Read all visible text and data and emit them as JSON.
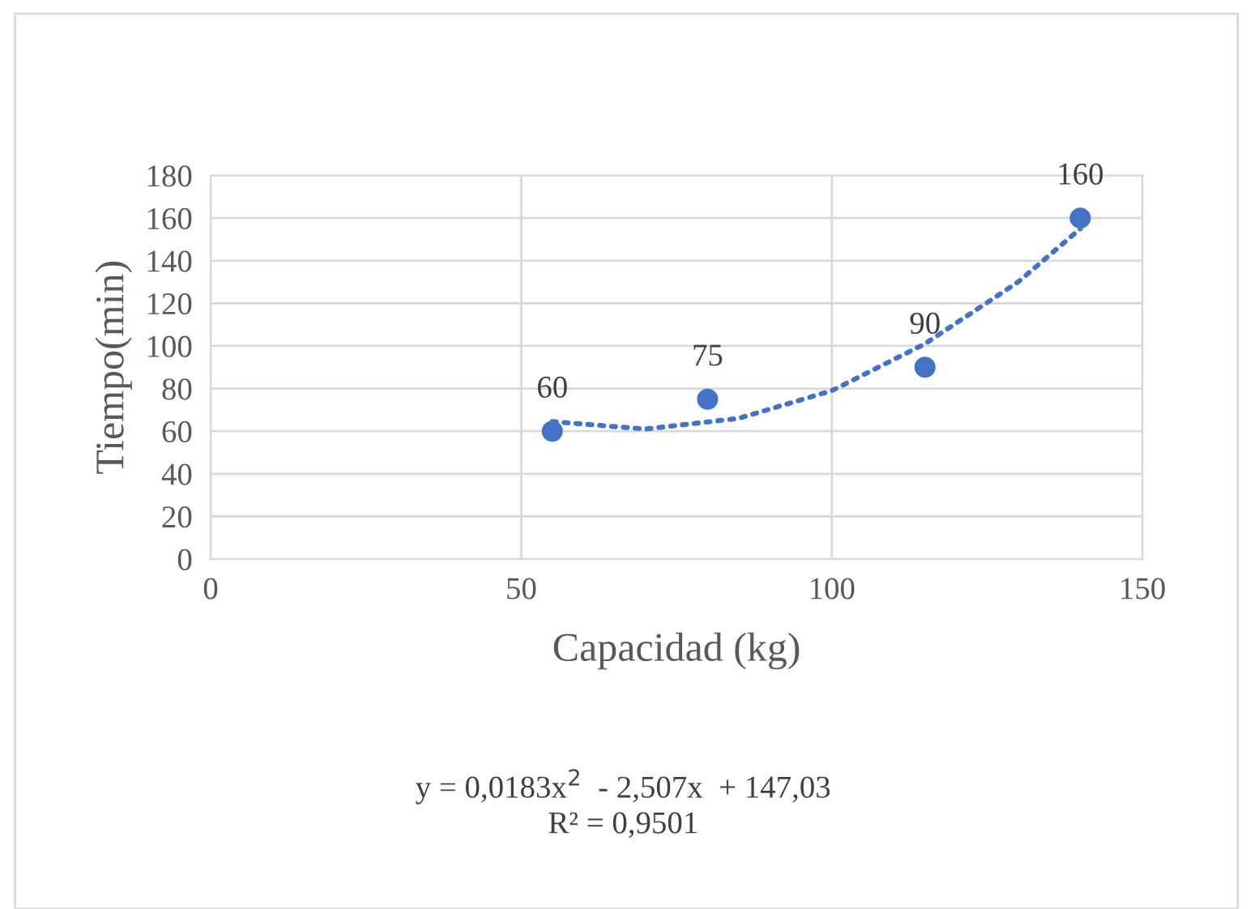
{
  "chart_data": {
    "type": "scatter",
    "xlabel": "Capacidad (kg)",
    "ylabel": "Tiempo(min)",
    "x": [
      55,
      80,
      115,
      140
    ],
    "series": [
      {
        "color": "#4472c4",
        "values": [
          60,
          75,
          90,
          160
        ],
        "value_labels": [
          "60",
          "75",
          "90",
          "160"
        ],
        "marker": "circle"
      },
      {
        "type": "line",
        "color": "#4472c4",
        "x": [
          55,
          70,
          85,
          100,
          115,
          130,
          140
        ],
        "values": [
          64.5,
          61,
          66,
          79,
          101,
          130,
          155
        ],
        "line_style": "dotted"
      }
    ],
    "xlim": [
      0,
      150
    ],
    "xticks": [
      0,
      50,
      100,
      150
    ],
    "ylim": [
      0,
      180
    ],
    "yticks": [
      0,
      20,
      40,
      60,
      80,
      100,
      120,
      140,
      160,
      180
    ],
    "grid": true,
    "legend": false,
    "annotations": [
      "y = 0,0183x$^{2}$  - 2,507x  + 147,03\nR² = 0,9501"
    ]
  }
}
